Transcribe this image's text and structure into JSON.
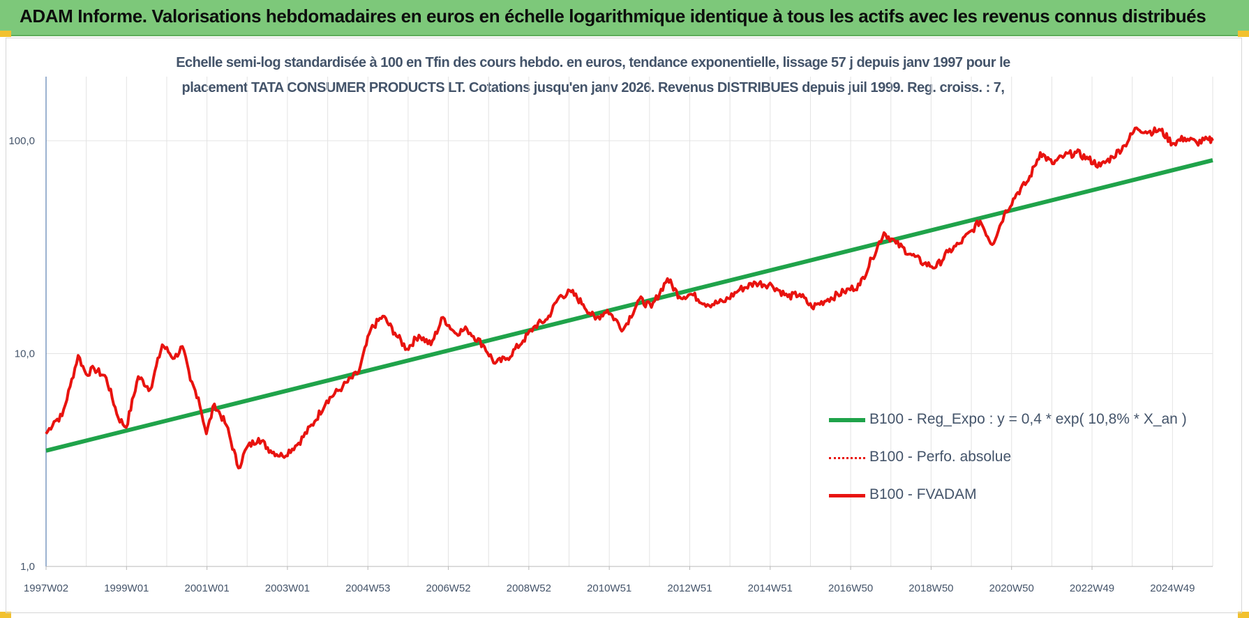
{
  "banner": {
    "title": "ADAM Informe. Valorisations hebdomadaires en euros en échelle logarithmique identique à tous les actifs avec les revenus connus distribués"
  },
  "colors": {
    "banner_bg": "#7dc87a",
    "corner_accent": "#f2c12e",
    "trend_line": "#1fa34a",
    "price_line": "#e8130f",
    "text": "#44546a"
  },
  "chart_data": {
    "type": "line",
    "title_line1": "Echelle semi-log standardisée à 100 en Tfin des cours hebdo. en euros, tendance exponentielle, lissage 57 j depuis janv 1997 pour le",
    "title_line2": "placement TATA CONSUMER PRODUCTS LT. Cotations jusqu'en janv 2026. Revenus DISTRIBUES depuis juil 1999. Reg. croiss. : 7,",
    "y_scale": "log",
    "ylim": [
      1,
      200
    ],
    "grid": true,
    "legend_position": "bottom-right",
    "y_ticks": [
      "1,0",
      "10,0",
      "100,0"
    ],
    "x_ticks": [
      "1997W02",
      "1999W01",
      "2001W01",
      "2003W01",
      "2004W53",
      "2006W52",
      "2008W52",
      "2010W51",
      "2012W51",
      "2014W51",
      "2016W50",
      "2018W50",
      "2020W50",
      "2022W49",
      "2024W49"
    ],
    "xlim": [
      1997.0,
      2026.1
    ],
    "series": [
      {
        "name": "B100 - Reg_Expo : y = 0,4 * exp( 10,8% *  X_an )",
        "style": "solid-thick",
        "color": "#1fa34a",
        "x": [
          1997.0,
          2026.1
        ],
        "y": [
          3.5,
          81
        ]
      },
      {
        "name": "B100 - Perfo. absolue",
        "style": "dotted",
        "color": "#e8130f",
        "x": [],
        "y": []
      },
      {
        "name": "B100 - FVADAM",
        "style": "solid",
        "color": "#e8130f",
        "x": [
          1997.0,
          1997.2,
          1997.4,
          1997.6,
          1997.8,
          1998.0,
          1998.2,
          1998.5,
          1998.8,
          1999.0,
          1999.3,
          1999.6,
          1999.9,
          2000.2,
          2000.4,
          2000.6,
          2000.8,
          2001.0,
          2001.2,
          2001.5,
          2001.8,
          2002.0,
          2002.3,
          2002.6,
          2002.9,
          2003.3,
          2003.7,
          2004.0,
          2004.4,
          2004.8,
          2005.1,
          2005.4,
          2005.7,
          2006.0,
          2006.3,
          2006.6,
          2006.9,
          2007.2,
          2007.5,
          2007.9,
          2008.2,
          2008.5,
          2008.9,
          2009.2,
          2009.5,
          2009.8,
          2010.1,
          2010.4,
          2010.7,
          2011.0,
          2011.4,
          2011.8,
          2012.1,
          2012.5,
          2012.8,
          2013.1,
          2013.5,
          2013.9,
          2014.3,
          2014.7,
          2015.1,
          2015.5,
          2015.8,
          2016.1,
          2016.5,
          2016.9,
          2017.3,
          2017.6,
          2017.9,
          2018.2,
          2018.6,
          2018.9,
          2019.2,
          2019.5,
          2019.8,
          2020.1,
          2020.3,
          2020.6,
          2020.9,
          2021.2,
          2021.5,
          2021.8,
          2022.1,
          2022.4,
          2022.7,
          2023.0,
          2023.3,
          2023.6,
          2023.9,
          2024.2,
          2024.5,
          2024.8,
          2025.1,
          2025.4,
          2025.7,
          2026.0,
          2026.1
        ],
        "y": [
          4.2,
          4.8,
          5.1,
          7.0,
          9.8,
          8.0,
          8.5,
          7.7,
          5.0,
          4.5,
          7.8,
          6.8,
          11.0,
          9.5,
          10.8,
          7.5,
          6.2,
          4.2,
          5.8,
          4.6,
          2.9,
          3.6,
          4.0,
          3.5,
          3.3,
          3.8,
          4.8,
          6.0,
          7.0,
          8.2,
          13.0,
          15.0,
          12.5,
          10.5,
          12.2,
          11.0,
          14.8,
          12.5,
          13.0,
          11.0,
          9.0,
          9.5,
          11.5,
          13.5,
          14.5,
          18.5,
          19.5,
          17.0,
          14.5,
          16.0,
          13.0,
          18.0,
          16.5,
          22.5,
          18.5,
          19.0,
          17.0,
          17.5,
          20.0,
          21.5,
          21.0,
          18.5,
          19.0,
          16.5,
          18.0,
          19.5,
          21.0,
          28.0,
          37.0,
          33.0,
          29.0,
          26.5,
          25.5,
          30.0,
          33.0,
          38.0,
          42.0,
          32.5,
          45.0,
          56.0,
          65.0,
          88.0,
          78.0,
          85.0,
          88.0,
          82.0,
          76.0,
          84.0,
          95.0,
          115.0,
          110.0,
          112.0,
          97.0,
          103.0,
          98.0,
          101.0,
          100.0
        ]
      }
    ]
  }
}
